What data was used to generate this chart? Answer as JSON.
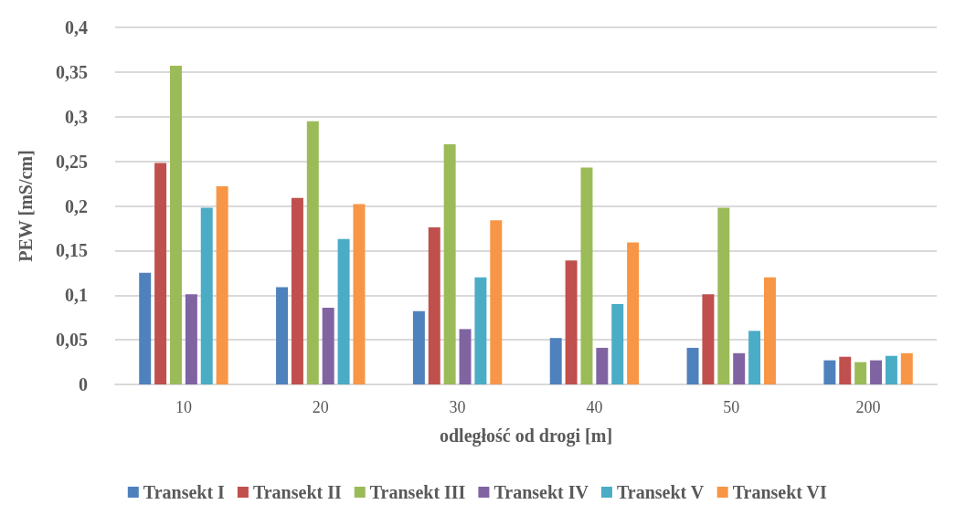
{
  "chart_data": {
    "type": "bar",
    "xlabel": "odległość od drogi [m]",
    "ylabel": "PEW [mS/cm]",
    "categories": [
      "10",
      "20",
      "30",
      "40",
      "50",
      "200"
    ],
    "series": [
      {
        "name": "Transekt I",
        "color": "#4f81bd",
        "values": [
          0.125,
          0.109,
          0.082,
          0.052,
          0.041,
          0.027
        ]
      },
      {
        "name": "Transekt II",
        "color": "#c0504d",
        "values": [
          0.248,
          0.209,
          0.176,
          0.139,
          0.101,
          0.031
        ]
      },
      {
        "name": "Transekt III",
        "color": "#9bbb59",
        "values": [
          0.357,
          0.295,
          0.269,
          0.243,
          0.198,
          0.025
        ]
      },
      {
        "name": "Transekt IV",
        "color": "#8064a2",
        "values": [
          0.101,
          0.086,
          0.062,
          0.041,
          0.035,
          0.027
        ]
      },
      {
        "name": "Transekt V",
        "color": "#4bacc6",
        "values": [
          0.198,
          0.163,
          0.12,
          0.09,
          0.06,
          0.032
        ]
      },
      {
        "name": "Transekt VI",
        "color": "#f79646",
        "values": [
          0.222,
          0.202,
          0.184,
          0.159,
          0.12,
          0.035
        ]
      }
    ],
    "ylim": [
      0,
      0.4
    ],
    "yticks": [
      0,
      {
        "value": 0.05,
        "label": "0,05"
      },
      {
        "value": 0.1,
        "label": "0,1"
      },
      {
        "value": 0.15,
        "label": "0,15"
      },
      {
        "value": 0.2,
        "label": "0,2"
      },
      {
        "value": 0.25,
        "label": "0,25"
      },
      {
        "value": 0.3,
        "label": "0,3"
      },
      {
        "value": 0.35,
        "label": "0,35"
      },
      {
        "value": 0.4,
        "label": "0,4"
      }
    ],
    "grid": "y",
    "legend": "bottom"
  }
}
